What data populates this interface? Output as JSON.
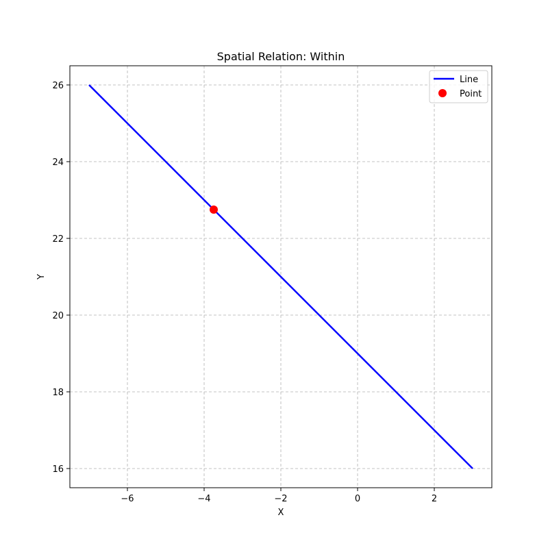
{
  "chart_data": {
    "type": "line",
    "title": "Spatial Relation: Within",
    "xlabel": "X",
    "ylabel": "Y",
    "xlim": [
      -7.5,
      3.5
    ],
    "ylim": [
      15.5,
      26.5
    ],
    "xticks": [
      -6,
      -4,
      -2,
      0,
      2
    ],
    "yticks": [
      16,
      18,
      20,
      22,
      24,
      26
    ],
    "xtick_labels": [
      "−6",
      "−4",
      "−2",
      "0",
      "2"
    ],
    "ytick_labels": [
      "16",
      "18",
      "20",
      "22",
      "24",
      "26"
    ],
    "grid": true,
    "legend_position": "top-right",
    "series": [
      {
        "name": "Line",
        "kind": "line",
        "color": "#0000ff",
        "x": [
          -7,
          3
        ],
        "y": [
          26,
          16
        ]
      },
      {
        "name": "Point",
        "kind": "point",
        "color": "#ff0000",
        "x": [
          -3.75
        ],
        "y": [
          22.75
        ]
      }
    ]
  }
}
